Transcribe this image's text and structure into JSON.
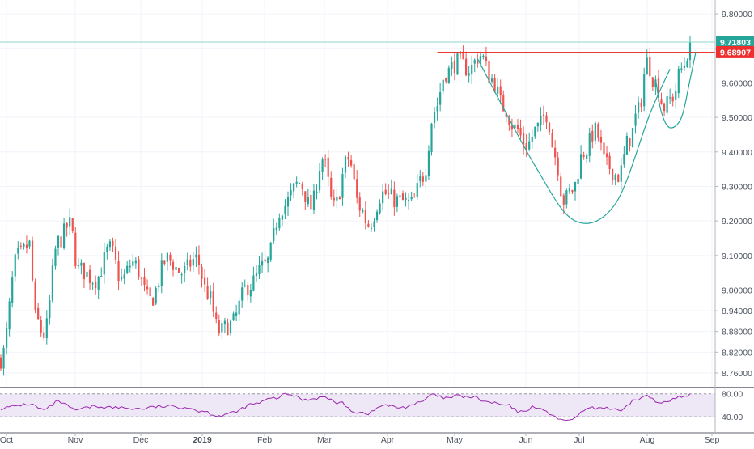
{
  "chart_data": {
    "type": "candlestick",
    "x_labels": [
      "Oct",
      "Nov",
      "Dec",
      "2019",
      "Feb",
      "Mar",
      "Apr",
      "May",
      "Jun",
      "Jul",
      "Aug",
      "Sep"
    ],
    "price_axis": {
      "ylim": [
        8.72,
        9.84
      ],
      "ticks": [
        "9.80000",
        "9.70000",
        "9.60000",
        "9.50000",
        "9.40000",
        "9.30000",
        "9.20000",
        "9.10000",
        "9.00000",
        "8.94000",
        "8.88000",
        "8.82000",
        "8.76000"
      ],
      "tick_values": [
        9.8,
        9.7,
        9.6,
        9.5,
        9.4,
        9.3,
        9.2,
        9.1,
        9.0,
        8.94,
        8.88,
        8.82,
        8.76
      ]
    },
    "price_labels": [
      {
        "text": "9.71803",
        "value": 9.71803,
        "color": "#26a69a"
      },
      {
        "text": "9.68907",
        "value": 9.68907,
        "color": "#ef2f2f"
      }
    ],
    "resistance_value": 9.689,
    "anchors": [
      [
        0,
        8.8
      ],
      [
        6,
        9.1
      ],
      [
        10,
        9.13
      ],
      [
        12,
        8.92
      ],
      [
        15,
        8.87
      ],
      [
        20,
        9.14
      ],
      [
        24,
        9.19
      ],
      [
        27,
        9.06
      ],
      [
        33,
        9.03
      ],
      [
        38,
        9.12
      ],
      [
        42,
        9.03
      ],
      [
        46,
        9.08
      ],
      [
        52,
        8.97
      ],
      [
        58,
        9.09
      ],
      [
        63,
        9.05
      ],
      [
        68,
        9.09
      ],
      [
        72,
        8.99
      ],
      [
        76,
        8.88
      ],
      [
        80,
        8.9
      ],
      [
        86,
        9.01
      ],
      [
        92,
        9.07
      ],
      [
        98,
        9.24
      ],
      [
        104,
        9.31
      ],
      [
        108,
        9.24
      ],
      [
        112,
        9.38
      ],
      [
        116,
        9.24
      ],
      [
        121,
        9.38
      ],
      [
        125,
        9.24
      ],
      [
        128,
        9.19
      ],
      [
        133,
        9.28
      ],
      [
        138,
        9.26
      ],
      [
        143,
        9.25
      ],
      [
        147,
        9.33
      ],
      [
        151,
        9.52
      ],
      [
        155,
        9.63
      ],
      [
        159,
        9.66
      ],
      [
        163,
        9.64
      ],
      [
        167,
        9.68
      ],
      [
        171,
        9.61
      ],
      [
        175,
        9.53
      ],
      [
        179,
        9.47
      ],
      [
        183,
        9.42
      ],
      [
        187,
        9.47
      ],
      [
        190,
        9.51
      ],
      [
        193,
        9.39
      ],
      [
        196,
        9.26
      ],
      [
        199,
        9.29
      ],
      [
        203,
        9.4
      ],
      [
        207,
        9.46
      ],
      [
        211,
        9.36
      ],
      [
        215,
        9.33
      ],
      [
        219,
        9.44
      ],
      [
        222,
        9.52
      ],
      [
        225,
        9.66
      ],
      [
        228,
        9.6
      ],
      [
        231,
        9.53
      ],
      [
        234,
        9.56
      ],
      [
        237,
        9.64
      ],
      [
        240,
        9.7
      ]
    ],
    "cup_bottom": [
      [
        166,
        9.67
      ],
      [
        186,
        9.36
      ],
      [
        200,
        9.2
      ],
      [
        214,
        9.25
      ],
      [
        226,
        9.51
      ],
      [
        233,
        9.64
      ]
    ],
    "handle": [
      [
        228,
        9.61
      ],
      [
        230,
        9.515
      ],
      [
        233,
        9.47
      ],
      [
        237,
        9.5
      ],
      [
        240,
        9.61
      ],
      [
        242,
        9.69
      ]
    ],
    "rsi": {
      "ticks": [
        "80.00",
        "40.00"
      ],
      "tick_values": [
        80,
        40
      ],
      "ylim": [
        22,
        88
      ],
      "anchors": [
        [
          0,
          55
        ],
        [
          10,
          62
        ],
        [
          15,
          52
        ],
        [
          20,
          66
        ],
        [
          26,
          52
        ],
        [
          33,
          58
        ],
        [
          40,
          56
        ],
        [
          48,
          54
        ],
        [
          56,
          58
        ],
        [
          64,
          57
        ],
        [
          70,
          50
        ],
        [
          76,
          42
        ],
        [
          80,
          46
        ],
        [
          88,
          62
        ],
        [
          95,
          72
        ],
        [
          100,
          79
        ],
        [
          106,
          70
        ],
        [
          112,
          74
        ],
        [
          118,
          64
        ],
        [
          124,
          48
        ],
        [
          128,
          46
        ],
        [
          133,
          60
        ],
        [
          139,
          56
        ],
        [
          146,
          64
        ],
        [
          150,
          78
        ],
        [
          155,
          72
        ],
        [
          159,
          76
        ],
        [
          164,
          74
        ],
        [
          170,
          65
        ],
        [
          176,
          60
        ],
        [
          181,
          48
        ],
        [
          186,
          58
        ],
        [
          191,
          46
        ],
        [
          196,
          32
        ],
        [
          200,
          38
        ],
        [
          204,
          54
        ],
        [
          210,
          56
        ],
        [
          216,
          50
        ],
        [
          221,
          70
        ],
        [
          225,
          76
        ],
        [
          229,
          64
        ],
        [
          233,
          70
        ],
        [
          237,
          74
        ],
        [
          241,
          78
        ]
      ]
    }
  }
}
